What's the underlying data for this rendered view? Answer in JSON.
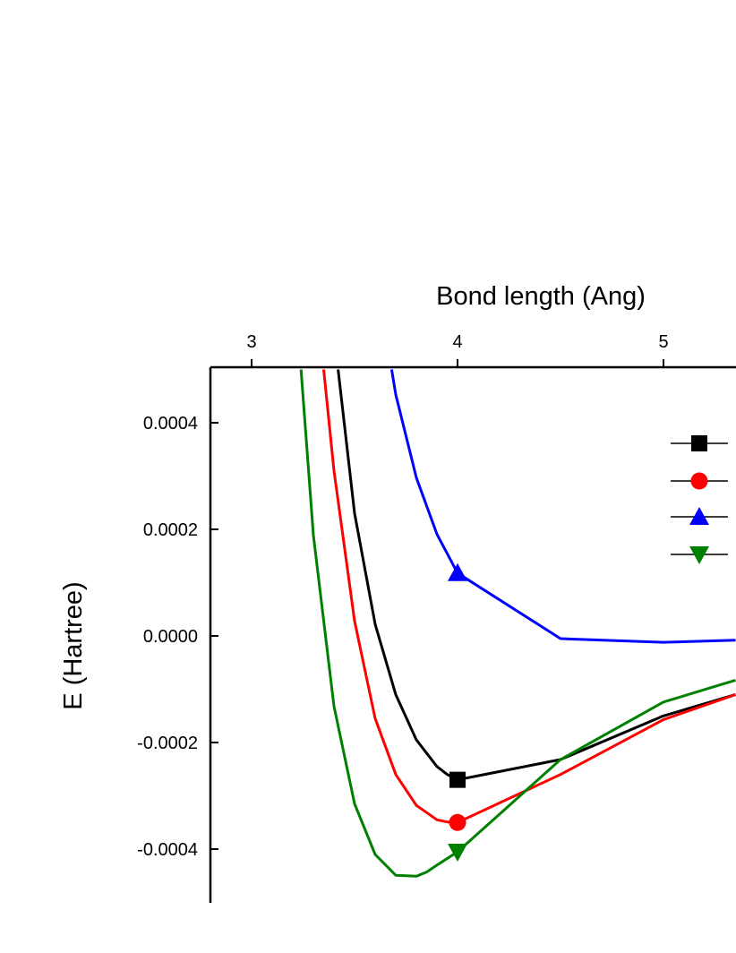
{
  "chart_data": {
    "type": "line",
    "title": "",
    "xlabel": "Bond length (Ang)",
    "ylabel": "E (Hartree)",
    "x_axis_position": "top",
    "xlim": [
      2.8,
      5.35
    ],
    "ylim": [
      -0.0005,
      0.0005
    ],
    "x_ticks": [
      3,
      4,
      5
    ],
    "x_tick_labels": [
      "3",
      "4",
      "5"
    ],
    "y_ticks": [
      0.0004,
      0.0002,
      0.0,
      -0.0002,
      -0.0004
    ],
    "y_tick_labels": [
      "0.0004",
      "0.0002",
      "0.0000",
      "-0.0002",
      "-0.0004"
    ],
    "grid": false,
    "legend_position": "right",
    "series": [
      {
        "color": "#000000",
        "marker": "square",
        "marker_at": [
          4.0,
          -0.00027
        ],
        "x": [
          3.42,
          3.5,
          3.6,
          3.7,
          3.8,
          3.9,
          3.95,
          4.0,
          4.5,
          5.0,
          5.35
        ],
        "y": [
          0.0005,
          0.00023,
          2.2e-05,
          -0.00011,
          -0.000195,
          -0.000245,
          -0.00026,
          -0.00027,
          -0.000232,
          -0.00015,
          -0.00011
        ]
      },
      {
        "color": "#ff0000",
        "marker": "circle",
        "marker_at": [
          4.0,
          -0.00035
        ],
        "x": [
          3.35,
          3.4,
          3.5,
          3.6,
          3.7,
          3.8,
          3.9,
          3.95,
          4.0,
          4.5,
          5.0,
          5.35
        ],
        "y": [
          0.0005,
          0.00031,
          2.8e-05,
          -0.000155,
          -0.00026,
          -0.000318,
          -0.000345,
          -0.000349,
          -0.00035,
          -0.00026,
          -0.000157,
          -0.00011
        ]
      },
      {
        "color": "#0000ff",
        "marker": "triangle-up",
        "marker_at": [
          4.0,
          0.000118
        ],
        "x": [
          3.68,
          3.7,
          3.8,
          3.9,
          4.0,
          4.5,
          5.0,
          5.35
        ],
        "y": [
          0.0005,
          0.000453,
          0.000297,
          0.000191,
          0.000118,
          -5e-06,
          -1.2e-05,
          -8e-06
        ]
      },
      {
        "color": "#008000",
        "marker": "triangle-down",
        "marker_at": [
          4.0,
          -0.000405
        ],
        "x": [
          3.24,
          3.3,
          3.4,
          3.5,
          3.6,
          3.7,
          3.8,
          3.85,
          3.9,
          4.0,
          4.5,
          5.0,
          5.35
        ],
        "y": [
          0.0005,
          0.000189,
          -0.000132,
          -0.000315,
          -0.00041,
          -0.000449,
          -0.000451,
          -0.000443,
          -0.00043,
          -0.000405,
          -0.000232,
          -0.000124,
          -8.3e-05
        ]
      }
    ]
  }
}
